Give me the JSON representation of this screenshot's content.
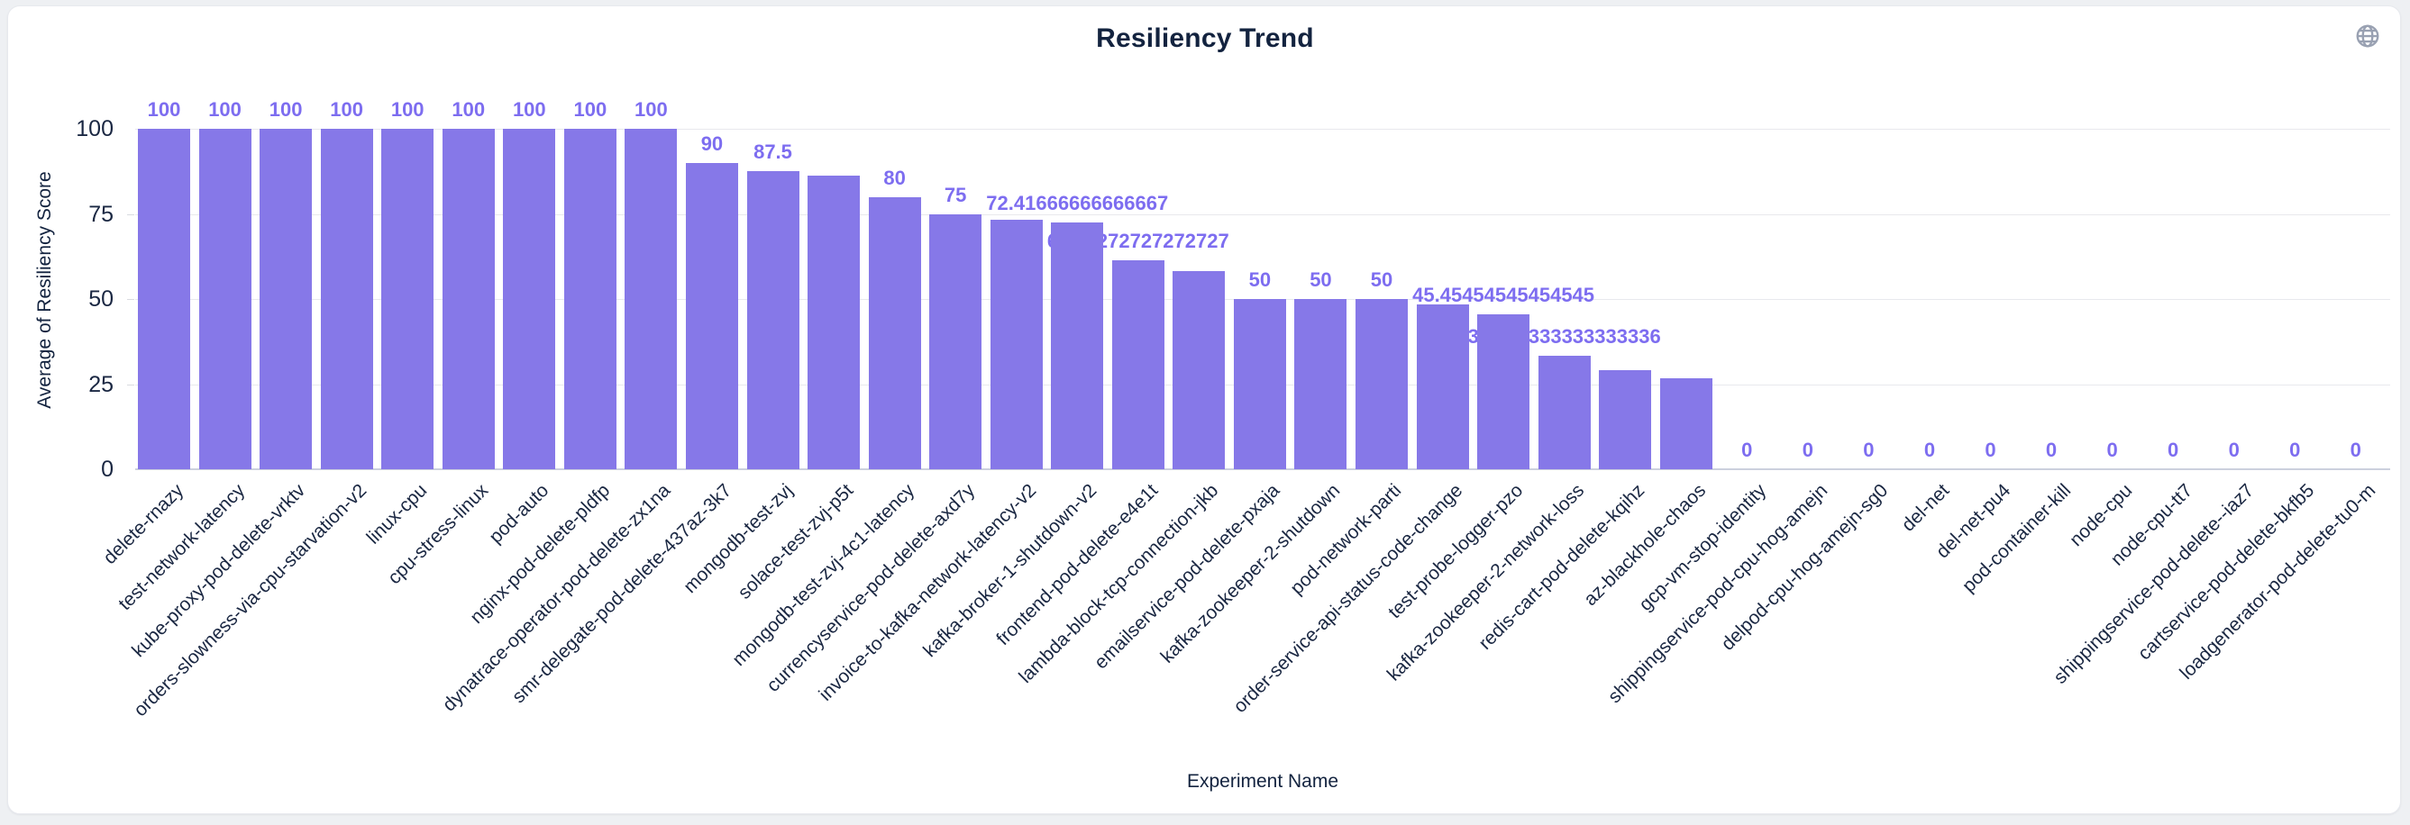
{
  "card": {
    "title": "Resiliency Trend"
  },
  "icons": {
    "top_right": "globe-icon"
  },
  "colors": {
    "bar": "#8678e8",
    "value_label": "#7d6df0",
    "axis_text": "#1a2742",
    "title_text": "#13233f",
    "gridline": "#e8e9ed",
    "axis_line": "#ccd0de",
    "card_background": "#ffffff",
    "page_background": "#eef0f3",
    "globe_icon": "#99a1b2"
  },
  "chart_data": {
    "type": "bar",
    "title": "Resiliency Trend",
    "xlabel": "Experiment Name",
    "ylabel": "Average of Resiliency Score",
    "ylim": [
      0,
      100
    ],
    "yticks": [
      0,
      25,
      50,
      75,
      100
    ],
    "grid": true,
    "legend": "none",
    "bars": [
      {
        "name": "delete-rnazy",
        "value": 100,
        "label": "100"
      },
      {
        "name": "test-network-latency",
        "value": 100,
        "label": "100"
      },
      {
        "name": "kube-proxy-pod-delete-vrktv",
        "value": 100,
        "label": "100"
      },
      {
        "name": "orders-slowness-via-cpu-starvation-v2",
        "value": 100,
        "label": "100"
      },
      {
        "name": "linux-cpu",
        "value": 100,
        "label": "100"
      },
      {
        "name": "cpu-stress-linux",
        "value": 100,
        "label": "100"
      },
      {
        "name": "pod-auto",
        "value": 100,
        "label": "100"
      },
      {
        "name": "nginx-pod-delete-pldfp",
        "value": 100,
        "label": "100"
      },
      {
        "name": "dynatrace-operator-pod-delete-zx1na",
        "value": 100,
        "label": "100"
      },
      {
        "name": "smr-delegate-pod-delete-437az-3k7",
        "value": 90,
        "label": "90"
      },
      {
        "name": "mongodb-test-zvj",
        "value": 87.5,
        "label": "87.5"
      },
      {
        "name": "solace-test-zvj-p5t",
        "value": 86.36363636363636,
        "label": ""
      },
      {
        "name": "mongodb-test-zvj-4c1-latency",
        "value": 80,
        "label": "80"
      },
      {
        "name": "currencyservice-pod-delete-axd7y",
        "value": 75,
        "label": "75"
      },
      {
        "name": "invoice-to-kafka-network-latency-v2",
        "value": 73.33333333333333,
        "label": ""
      },
      {
        "name": "kafka-broker-1-shutdown-v2",
        "value": 72.41666666666667,
        "label": "72.41666666666667"
      },
      {
        "name": "frontend-pod-delete-e4e1t",
        "value": 61.27272727272727,
        "label": "61.27272727272727"
      },
      {
        "name": "lambda-block-tcp-connection-jkb",
        "value": 58.33333333333333,
        "label": ""
      },
      {
        "name": "emailservice-pod-delete-pxaja",
        "value": 50,
        "label": "50"
      },
      {
        "name": "kafka-zookeeper-2-shutdown",
        "value": 50,
        "label": "50"
      },
      {
        "name": "pod-network-parti",
        "value": 50,
        "label": "50"
      },
      {
        "name": "order-service-api-status-code-change",
        "value": 48.33333333333333,
        "label": ""
      },
      {
        "name": "test-probe-logger-pzo",
        "value": 45.45454545454545,
        "label": "45.45454545454545"
      },
      {
        "name": "kafka-zookeeper-2-network-loss",
        "value": 33.333333333333336,
        "label": "33.333333333333336"
      },
      {
        "name": "redis-cart-pod-delete-kqihz",
        "value": 29.166666666666668,
        "label": ""
      },
      {
        "name": "az-blackhole-chaos",
        "value": 26.666666666666668,
        "label": ""
      },
      {
        "name": "gcp-vm-stop-identity",
        "value": 0,
        "label": "0"
      },
      {
        "name": "shippingservice-pod-cpu-hog-amejn",
        "value": 0,
        "label": "0"
      },
      {
        "name": "delpod-cpu-hog-amejn-sg0",
        "value": 0,
        "label": "0"
      },
      {
        "name": "del-net",
        "value": 0,
        "label": "0"
      },
      {
        "name": "del-net-pu4",
        "value": 0,
        "label": "0"
      },
      {
        "name": "pod-container-kill",
        "value": 0,
        "label": "0"
      },
      {
        "name": "node-cpu",
        "value": 0,
        "label": "0"
      },
      {
        "name": "node-cpu-tt7",
        "value": 0,
        "label": "0"
      },
      {
        "name": "shippingservice-pod-delete--iaz7",
        "value": 0,
        "label": "0"
      },
      {
        "name": "cartservice-pod-delete-bkfb5",
        "value": 0,
        "label": "0"
      },
      {
        "name": "loadgenerator-pod-delete-tu0-m",
        "value": 0,
        "label": "0"
      }
    ]
  }
}
